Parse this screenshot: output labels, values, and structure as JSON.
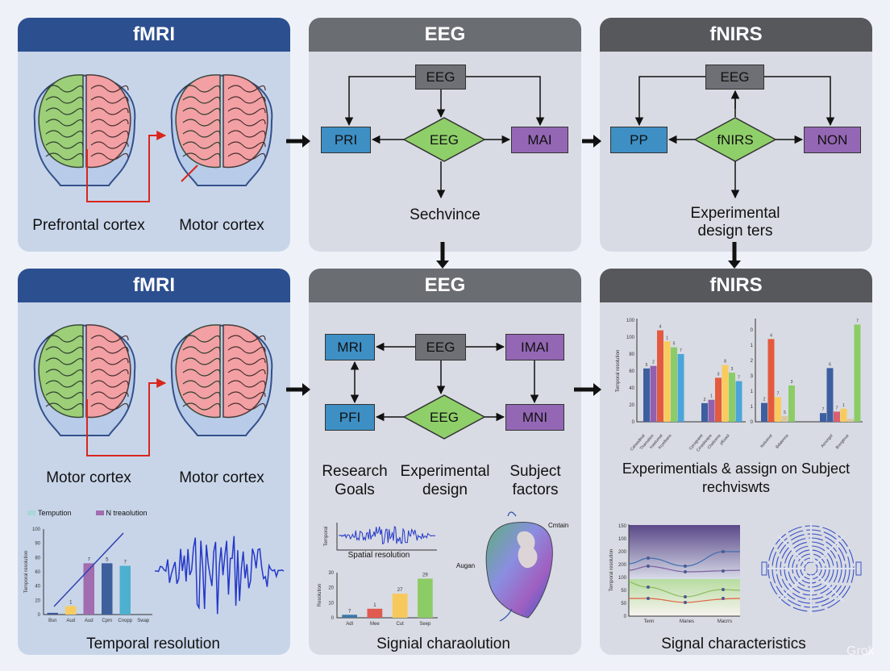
{
  "colors": {
    "fmri_header": "#2c4f8f",
    "eeg_header": "#6a6d72",
    "fnirs_header": "#56585c",
    "blue_box": "#3d8fc4",
    "green_diamond": "#8fcf6a",
    "purple_box": "#9467b5",
    "gray_box": "#6e7075",
    "brain_green": "#9ccf78",
    "brain_pink": "#f2a0a4",
    "arrow_red": "#d9261c"
  },
  "top": {
    "fmri": {
      "title": "fMRI",
      "label_left": "Prefrontal cortex",
      "label_right": "Motor cortex"
    },
    "eeg": {
      "title": "EEG",
      "box_top": "EEG",
      "box_left": "PRI",
      "diamond": "EEG",
      "box_right": "MAI",
      "caption": "Sechvince"
    },
    "fnirs": {
      "title": "fNIRS",
      "box_top": "EEG",
      "box_left": "PP",
      "diamond": "fNIRS",
      "box_right": "NON",
      "caption_line1": "Experimental",
      "caption_line2": "design ters"
    }
  },
  "bottom": {
    "fmri": {
      "title": "fMRI",
      "label_left": "Motor cortex",
      "label_right": "Motor cortex",
      "legend": [
        "Tempution",
        "N treaolution"
      ],
      "chart": {
        "ylabel": "Temporal resolution",
        "yticks": [
          "0",
          "20",
          "40",
          "60",
          "80",
          "90",
          "100"
        ],
        "categories": [
          "Bsn",
          "Aud",
          "Aud",
          "Cpm",
          "Cnopp",
          "Swap"
        ],
        "values": [
          2,
          10,
          60,
          60,
          57,
          0
        ],
        "labels": [
          "",
          "1",
          "7",
          "5",
          "7",
          ""
        ],
        "colors": [
          "#3f5596",
          "#f6cc62",
          "#a26cb0",
          "#3d5f9c",
          "#4db0d0",
          "#999"
        ]
      },
      "caption": "Temporal resolution"
    },
    "eeg": {
      "title": "EEG",
      "box_mri": "MRI",
      "box_eeg": "EEG",
      "box_imai": "IMAI",
      "box_pfi": "PFI",
      "diamond": "EEG",
      "box_mni": "MNI",
      "col1_line1": "Research",
      "col1_line2": "Goals",
      "col2_line1": "Experimental",
      "col2_line2": "design",
      "col3_line1": "Subject",
      "col3_line2": "factors",
      "wave_caption": "Spatial resolution",
      "wave_ylabel": "Temporal",
      "chart": {
        "ylabel": "Resolution",
        "yticks": [
          "0",
          "10",
          "20",
          "30"
        ],
        "categories": [
          "Adl",
          "Mee",
          "Cut",
          "Seep"
        ],
        "values": [
          2,
          6,
          16,
          26
        ],
        "labels": [
          "7",
          "1",
          "27",
          "29"
        ],
        "colors": [
          "#3d78a8",
          "#e05a4f",
          "#f7c95c",
          "#8ccc66"
        ]
      },
      "organ_label_right": "Cmtain",
      "organ_label_left": "Augan",
      "caption": "Signial charaolution"
    },
    "fnirs": {
      "title": "fNIRS",
      "ylabel": "Temporal resolution",
      "chart_a": {
        "yticks": [
          "0",
          "20",
          "40",
          "60",
          "80",
          "100",
          "100"
        ],
        "groups": [
          {
            "values": [
              63,
              66,
              108,
              95,
              88,
              80
            ],
            "labels": [
              "5",
              "2",
              "4",
              "1",
              "5",
              "7"
            ]
          },
          {
            "values": [
              22,
              26,
              52,
              67,
              58,
              48
            ],
            "labels": [
              "2",
              "1",
              "3",
              "8",
              "3",
              "7"
            ]
          }
        ],
        "colors": [
          "#3d5fa0",
          "#9160ae",
          "#e45a3e",
          "#f8cb5c",
          "#8ccc66",
          "#4ba5d9"
        ],
        "xlabels": [
          "Cahasdinal",
          "Tharnalion",
          "Inastumal",
          "Kryelbans",
          "Cprogramt",
          "Cinaskeapa",
          "Chalizena",
          "pRoasl"
        ]
      },
      "chart_b": {
        "yticks": [
          "0",
          "1",
          "1",
          "3",
          "2",
          "1",
          "0"
        ],
        "groups": [
          {
            "values": [
              1.3,
              5.7,
              1.7,
              0.4,
              2.5
            ],
            "labels": [
              "2",
              "4",
              "7",
              "5",
              "3"
            ],
            "colors": [
              "#3d5fa0",
              "#e45a3e",
              "#f8cb5c",
              "#d8c8a0",
              "#8ccc66"
            ]
          },
          {
            "values": [
              0.6,
              3.7,
              0.7,
              0.9,
              0.2,
              6.7
            ],
            "labels": [
              "7",
              "6",
              "7",
              "1",
              "",
              "7"
            ],
            "colors": [
              "#3d5fa0",
              "#3d5fa0",
              "#d86070",
              "#f8cb5c",
              "#d8c8a0",
              "#8ccc66"
            ]
          }
        ],
        "xlabels": [
          "Isolusnot",
          "Bdalenna",
          "Asnorgol",
          "Brergtnue"
        ]
      },
      "caption_line1": "Experimentials & assign on Subject",
      "caption_line2": "rechviswts",
      "line_chart": {
        "ylabel": "Temporal resolution",
        "yticks": [
          "0",
          "50",
          "50",
          "100",
          "200",
          "200",
          "100",
          "150"
        ],
        "xticks": [
          "Tenn",
          "Manes",
          "Macrrs"
        ]
      },
      "caption": "Signal characteristics"
    }
  },
  "watermark": "Grok"
}
